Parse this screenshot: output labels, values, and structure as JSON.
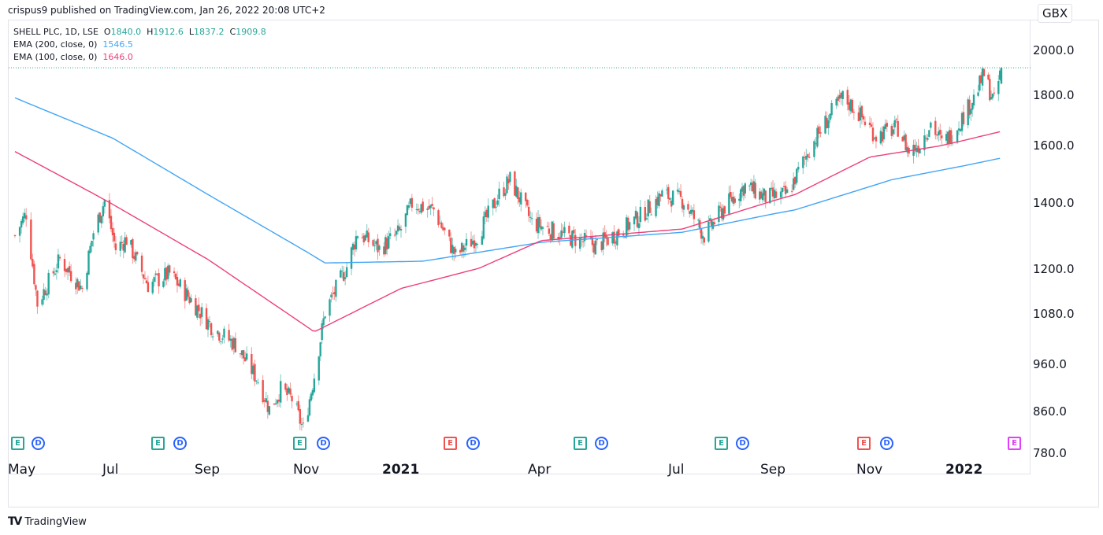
{
  "header": {
    "publish_text": "crispus9 published on TradingView.com, Jan 26, 2022 20:08 UTC+2"
  },
  "legend": {
    "symbol": "SHELL PLC, 1D, LSE",
    "open_label": "O",
    "open": "1840.0",
    "high_label": "H",
    "high": "1912.6",
    "low_label": "L",
    "low": "1837.2",
    "close_label": "C",
    "close": "1909.8",
    "ema200_label": "EMA (200, close, 0)",
    "ema200_value": "1546.5",
    "ema100_label": "EMA (100, close, 0)",
    "ema100_value": "1646.0"
  },
  "currency_badge": "GBX",
  "footer": {
    "logo_icon": "tradingview-logo-icon",
    "brand": "TradingView"
  },
  "colors": {
    "up": "#26a69a",
    "down": "#ef5350",
    "ema200": "#42a5f5",
    "ema100": "#ec407a",
    "dividend": "#2962ff",
    "earnings_up": "#26a69a",
    "earnings_down": "#ef5350",
    "earnings_future": "#e040fb"
  },
  "chart_data": {
    "type": "candlestick",
    "title": "SHELL PLC, 1D, LSE",
    "scale": "log",
    "ylabel": "GBX",
    "ylim": [
      760,
      2060
    ],
    "y_ticks": [
      "2000.0",
      "1800.0",
      "1600.0",
      "1400.0",
      "1200.0",
      "1080.0",
      "960.0",
      "860.0",
      "780.0"
    ],
    "x_ticks": [
      {
        "label": "May",
        "bold": false
      },
      {
        "label": "Jul",
        "bold": false
      },
      {
        "label": "Sep",
        "bold": false
      },
      {
        "label": "Nov",
        "bold": false
      },
      {
        "label": "2021",
        "bold": true
      },
      {
        "label": "Apr",
        "bold": false
      },
      {
        "label": "Jul",
        "bold": false
      },
      {
        "label": "Sep",
        "bold": false
      },
      {
        "label": "Nov",
        "bold": false
      },
      {
        "label": "2022",
        "bold": true
      }
    ],
    "last_price_line": 1909.8,
    "close_path": [
      {
        "date": "2020-05-01",
        "close": 1290
      },
      {
        "date": "2020-05-08",
        "close": 1360
      },
      {
        "date": "2020-05-15",
        "close": 1100
      },
      {
        "date": "2020-05-29",
        "close": 1220
      },
      {
        "date": "2020-06-05",
        "close": 1180
      },
      {
        "date": "2020-06-12",
        "close": 1140
      },
      {
        "date": "2020-06-19",
        "close": 1300
      },
      {
        "date": "2020-06-26",
        "close": 1400
      },
      {
        "date": "2020-07-03",
        "close": 1250
      },
      {
        "date": "2020-07-10",
        "close": 1280
      },
      {
        "date": "2020-07-24",
        "close": 1150
      },
      {
        "date": "2020-08-07",
        "close": 1180
      },
      {
        "date": "2020-08-21",
        "close": 1110
      },
      {
        "date": "2020-09-04",
        "close": 1040
      },
      {
        "date": "2020-09-18",
        "close": 1000
      },
      {
        "date": "2020-10-02",
        "close": 920
      },
      {
        "date": "2020-10-09",
        "close": 860
      },
      {
        "date": "2020-10-16",
        "close": 900
      },
      {
        "date": "2020-10-23",
        "close": 880
      },
      {
        "date": "2020-10-30",
        "close": 820
      },
      {
        "date": "2020-11-06",
        "close": 930
      },
      {
        "date": "2020-11-13",
        "close": 1080
      },
      {
        "date": "2020-11-27",
        "close": 1200
      },
      {
        "date": "2020-12-04",
        "close": 1300
      },
      {
        "date": "2020-12-18",
        "close": 1250
      },
      {
        "date": "2020-12-31",
        "close": 1300
      },
      {
        "date": "2021-01-08",
        "close": 1390
      },
      {
        "date": "2021-01-22",
        "close": 1370
      },
      {
        "date": "2021-02-05",
        "close": 1230
      },
      {
        "date": "2021-02-19",
        "close": 1290
      },
      {
        "date": "2021-03-05",
        "close": 1420
      },
      {
        "date": "2021-03-12",
        "close": 1470
      },
      {
        "date": "2021-03-26",
        "close": 1330
      },
      {
        "date": "2021-04-16",
        "close": 1290
      },
      {
        "date": "2021-05-07",
        "close": 1260
      },
      {
        "date": "2021-05-21",
        "close": 1300
      },
      {
        "date": "2021-06-04",
        "close": 1350
      },
      {
        "date": "2021-06-18",
        "close": 1420
      },
      {
        "date": "2021-07-02",
        "close": 1400
      },
      {
        "date": "2021-07-16",
        "close": 1290
      },
      {
        "date": "2021-07-30",
        "close": 1380
      },
      {
        "date": "2021-08-13",
        "close": 1450
      },
      {
        "date": "2021-08-27",
        "close": 1410
      },
      {
        "date": "2021-09-10",
        "close": 1420
      },
      {
        "date": "2021-09-24",
        "close": 1580
      },
      {
        "date": "2021-10-08",
        "close": 1720
      },
      {
        "date": "2021-10-15",
        "close": 1780
      },
      {
        "date": "2021-10-22",
        "close": 1740
      },
      {
        "date": "2021-11-05",
        "close": 1630
      },
      {
        "date": "2021-11-19",
        "close": 1660
      },
      {
        "date": "2021-11-26",
        "close": 1570
      },
      {
        "date": "2021-12-03",
        "close": 1600
      },
      {
        "date": "2021-12-10",
        "close": 1680
      },
      {
        "date": "2021-12-17",
        "close": 1600
      },
      {
        "date": "2021-12-24",
        "close": 1640
      },
      {
        "date": "2022-01-07",
        "close": 1780
      },
      {
        "date": "2022-01-14",
        "close": 1880
      },
      {
        "date": "2022-01-21",
        "close": 1760
      },
      {
        "date": "2022-01-26",
        "close": 1909.8
      }
    ],
    "ema200_path": [
      {
        "date": "2020-05-01",
        "value": 1780
      },
      {
        "date": "2020-07-01",
        "value": 1620
      },
      {
        "date": "2020-09-01",
        "value": 1420
      },
      {
        "date": "2020-11-13",
        "value": 1210
      },
      {
        "date": "2021-01-15",
        "value": 1215
      },
      {
        "date": "2021-04-01",
        "value": 1270
      },
      {
        "date": "2021-07-01",
        "value": 1300
      },
      {
        "date": "2021-09-15",
        "value": 1370
      },
      {
        "date": "2021-11-15",
        "value": 1470
      },
      {
        "date": "2022-01-26",
        "value": 1546.5
      }
    ],
    "ema100_path": [
      {
        "date": "2020-05-01",
        "value": 1570
      },
      {
        "date": "2020-06-20",
        "value": 1420
      },
      {
        "date": "2020-09-01",
        "value": 1220
      },
      {
        "date": "2020-11-06",
        "value": 1030
      },
      {
        "date": "2021-01-01",
        "value": 1140
      },
      {
        "date": "2021-02-20",
        "value": 1195
      },
      {
        "date": "2021-04-01",
        "value": 1275
      },
      {
        "date": "2021-07-01",
        "value": 1310
      },
      {
        "date": "2021-09-15",
        "value": 1420
      },
      {
        "date": "2021-11-01",
        "value": 1550
      },
      {
        "date": "2021-12-15",
        "value": 1590
      },
      {
        "date": "2022-01-26",
        "value": 1646
      }
    ],
    "events": [
      {
        "type": "earnings",
        "label": "E",
        "result": "up"
      },
      {
        "type": "dividend",
        "label": "D"
      },
      {
        "type": "earnings",
        "label": "E",
        "result": "up"
      },
      {
        "type": "dividend",
        "label": "D"
      },
      {
        "type": "earnings",
        "label": "E",
        "result": "up"
      },
      {
        "type": "dividend",
        "label": "D"
      },
      {
        "type": "earnings",
        "label": "E",
        "result": "down"
      },
      {
        "type": "dividend",
        "label": "D"
      },
      {
        "type": "earnings",
        "label": "E",
        "result": "up"
      },
      {
        "type": "dividend",
        "label": "D"
      },
      {
        "type": "earnings",
        "label": "E",
        "result": "up"
      },
      {
        "type": "dividend",
        "label": "D"
      },
      {
        "type": "earnings",
        "label": "E",
        "result": "down"
      },
      {
        "type": "dividend",
        "label": "D"
      },
      {
        "type": "earnings",
        "label": "E",
        "result": "future"
      }
    ]
  }
}
